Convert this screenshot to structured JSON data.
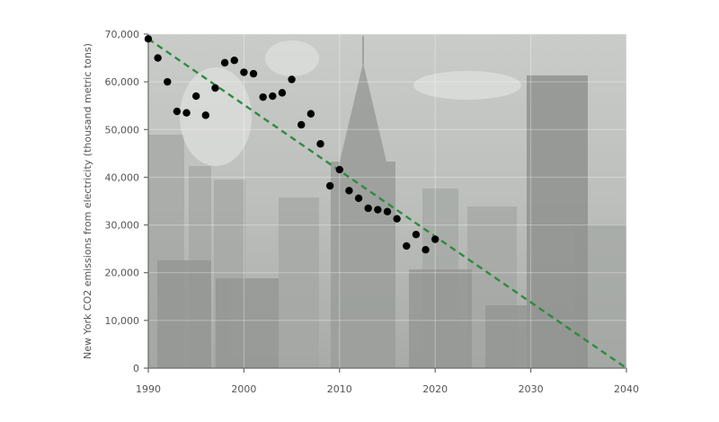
{
  "chart_data": {
    "type": "scatter",
    "title": "",
    "xlabel": "",
    "ylabel": "New York CO2 emissions from electricity (thousand metric tons)",
    "xlim": [
      1990,
      2040
    ],
    "ylim": [
      0,
      70000
    ],
    "x_ticks": [
      1990,
      2000,
      2010,
      2020,
      2030,
      2040
    ],
    "y_ticks": [
      0,
      10000,
      20000,
      30000,
      40000,
      50000,
      60000,
      70000
    ],
    "x_tick_labels": [
      "1990",
      "2000",
      "2010",
      "2020",
      "2030",
      "2040"
    ],
    "y_tick_labels": [
      "0",
      "10,000",
      "20,000",
      "30,000",
      "40,000",
      "50,000",
      "60,000",
      "70,000"
    ],
    "grid": true,
    "background": "photograph of the Manhattan skyline with the Chrysler Building",
    "series": [
      {
        "x": [
          1990,
          1991,
          1992,
          1993,
          1994,
          1995,
          1996,
          1997,
          1998,
          1999,
          2000,
          2001,
          2002,
          2003,
          2004,
          2005,
          2006,
          2007,
          2008,
          2009,
          2010,
          2011,
          2012,
          2013,
          2014,
          2015,
          2016,
          2017,
          2018,
          2019,
          2020
        ],
        "y": [
          69000,
          65000,
          60000,
          53800,
          53500,
          57000,
          53000,
          58700,
          64000,
          64500,
          62000,
          61700,
          56800,
          57000,
          57700,
          60500,
          51000,
          53300,
          47000,
          38200,
          41600,
          37200,
          35600,
          33500,
          33200,
          32800,
          31300,
          25600,
          28000,
          24800,
          27000
        ],
        "color": "#000000"
      }
    ],
    "trendline": {
      "style": "dashed",
      "color": "#2e8b3e",
      "from": [
        1990,
        69000
      ],
      "to": [
        2040,
        0
      ]
    }
  }
}
